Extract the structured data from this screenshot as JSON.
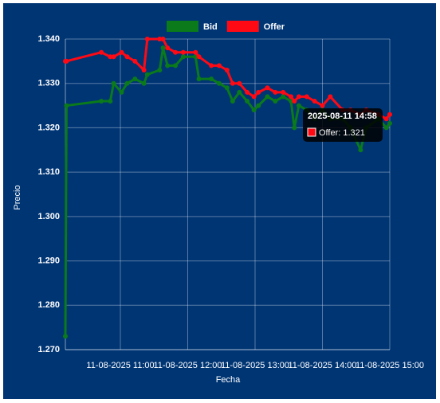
{
  "chart_data": {
    "type": "line",
    "legend": "top",
    "y_label": "Precio",
    "x_label": "Fecha",
    "x": [
      "2025-08-11 10:11",
      "2025-08-11 10:12",
      "2025-08-11 10:43",
      "2025-08-11 10:51",
      "2025-08-11 10:54",
      "2025-08-11 11:01",
      "2025-08-11 11:06",
      "2025-08-11 11:13",
      "2025-08-11 11:21",
      "2025-08-11 11:24",
      "2025-08-11 11:35",
      "2025-08-11 11:38",
      "2025-08-11 11:42",
      "2025-08-11 11:49",
      "2025-08-11 11:56",
      "2025-08-11 12:07",
      "2025-08-11 12:10",
      "2025-08-11 12:21",
      "2025-08-11 12:28",
      "2025-08-11 12:35",
      "2025-08-11 12:40",
      "2025-08-11 12:46",
      "2025-08-11 12:53",
      "2025-08-11 12:59",
      "2025-08-11 13:03",
      "2025-08-11 13:11",
      "2025-08-11 13:18",
      "2025-08-11 13:25",
      "2025-08-11 13:32",
      "2025-08-11 13:35",
      "2025-08-11 13:39",
      "2025-08-11 13:46",
      "2025-08-11 13:53",
      "2025-08-11 14:00",
      "2025-08-11 14:07",
      "2025-08-11 14:18",
      "2025-08-11 14:25",
      "2025-08-11 14:34",
      "2025-08-11 14:39",
      "2025-08-11 14:50",
      "2025-08-11 14:57",
      "2025-08-11 15:00"
    ],
    "series": [
      {
        "name": "Bid",
        "color": "#0a7a1a",
        "values": [
          1.273,
          1.325,
          1.326,
          1.326,
          1.33,
          1.328,
          1.33,
          1.331,
          1.33,
          1.332,
          1.333,
          1.338,
          1.334,
          1.334,
          1.336,
          1.336,
          1.331,
          1.331,
          1.33,
          1.329,
          1.326,
          1.328,
          1.326,
          1.324,
          1.325,
          1.327,
          1.326,
          1.327,
          1.326,
          1.32,
          1.325,
          1.324,
          1.322,
          1.324,
          1.322,
          1.322,
          1.32,
          1.315,
          1.32,
          1.322,
          1.32,
          1.321
        ]
      },
      {
        "name": "Offer",
        "color": "#ff0a14",
        "values": [
          1.335,
          1.335,
          1.337,
          1.336,
          1.336,
          1.337,
          1.336,
          1.335,
          1.333,
          1.34,
          1.34,
          1.34,
          1.338,
          1.337,
          1.337,
          1.337,
          1.336,
          1.334,
          1.334,
          1.333,
          1.33,
          1.33,
          1.328,
          1.327,
          1.328,
          1.329,
          1.328,
          1.328,
          1.327,
          1.326,
          1.327,
          1.327,
          1.326,
          1.325,
          1.327,
          1.324,
          1.324,
          1.323,
          1.324,
          1.323,
          1.322,
          1.323
        ]
      }
    ],
    "xlim": [
      "2025-08-11 10:11",
      "2025-08-11 15:00"
    ],
    "xticks": [
      {
        "value": "2025-08-11 11:00",
        "label": "11-08-2025 11:00"
      },
      {
        "value": "2025-08-11 12:00",
        "label": "11-08-2025 12:00"
      },
      {
        "value": "2025-08-11 13:00",
        "label": "11-08-2025 13:00"
      },
      {
        "value": "2025-08-11 14:00",
        "label": "11-08-2025 14:00"
      },
      {
        "value": "2025-08-11 15:00",
        "label": "11-08-2025 15:00"
      }
    ],
    "ylim": [
      1.27,
      1.34
    ],
    "yticks": [
      {
        "value": 1.27,
        "label": "1.270"
      },
      {
        "value": 1.28,
        "label": "1.280"
      },
      {
        "value": 1.29,
        "label": "1.290"
      },
      {
        "value": 1.3,
        "label": "1.300"
      },
      {
        "value": 1.31,
        "label": "1.310"
      },
      {
        "value": 1.32,
        "label": "1.320"
      },
      {
        "value": 1.33,
        "label": "1.330"
      },
      {
        "value": 1.34,
        "label": "1.340"
      }
    ],
    "grid": true,
    "tooltip": {
      "title": "2025-08-11 14:58",
      "label": "Offer: 1.321"
    }
  }
}
